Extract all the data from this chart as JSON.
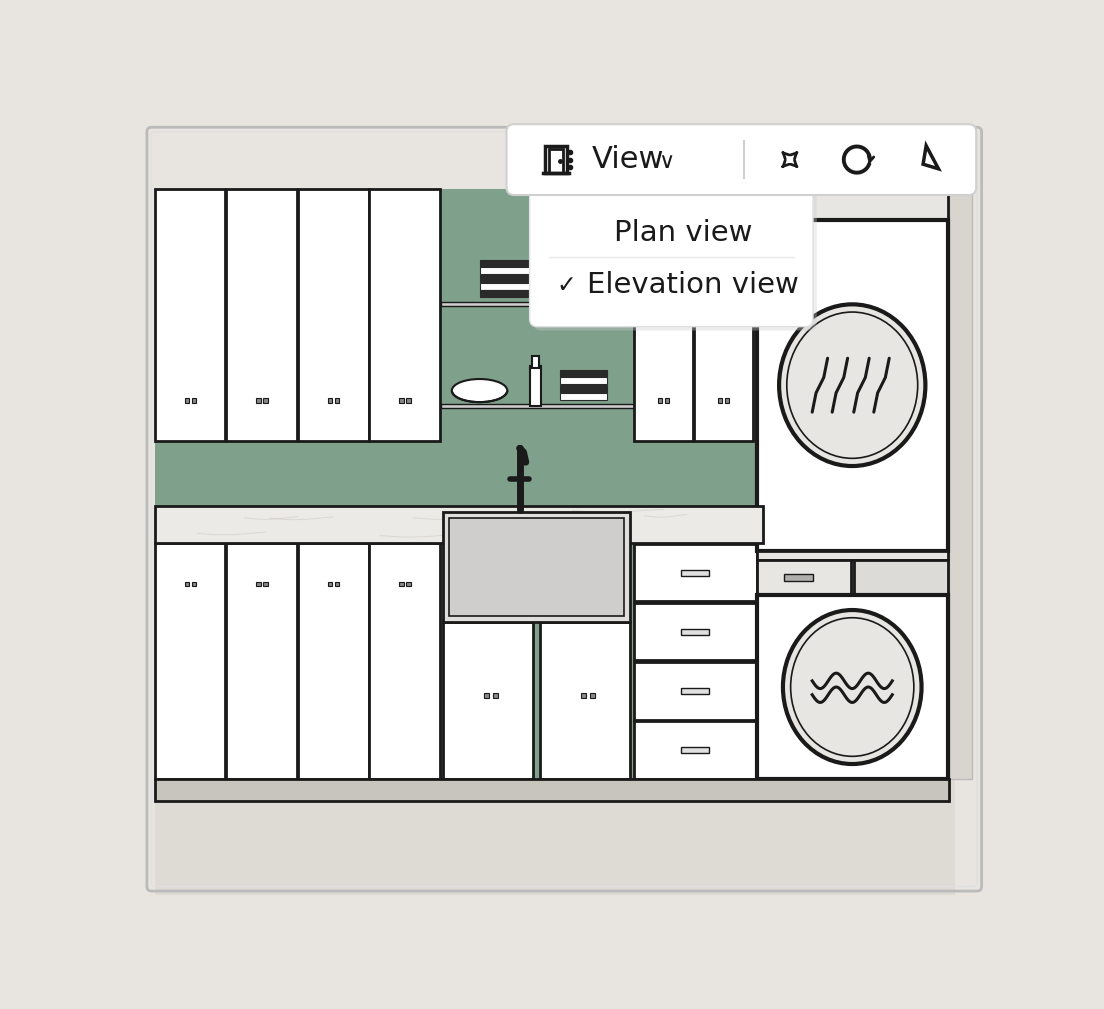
{
  "bg_color": "#e8e5e0",
  "wall_color": "#7fa08b",
  "cabinet_fill": "#ffffff",
  "cabinet_edge": "#1a1a1a",
  "counter_fill": "#f0eeeb",
  "appliance_fill": "#ebebeb",
  "drum_fill": "#e8e6e2",
  "toolbar_bg": "#ffffff",
  "dropdown_bg": "#ffffff",
  "plan_view_text": "Plan view",
  "elevation_view_text": "Elevation view",
  "view_button_text": "View",
  "text_color": "#1a1a1a",
  "floor_color": "#d6d2cc",
  "right_panel_color": "#d8d4ce",
  "lw_main": 2.0,
  "lw_thick": 3.0,
  "lw_thin": 1.2
}
